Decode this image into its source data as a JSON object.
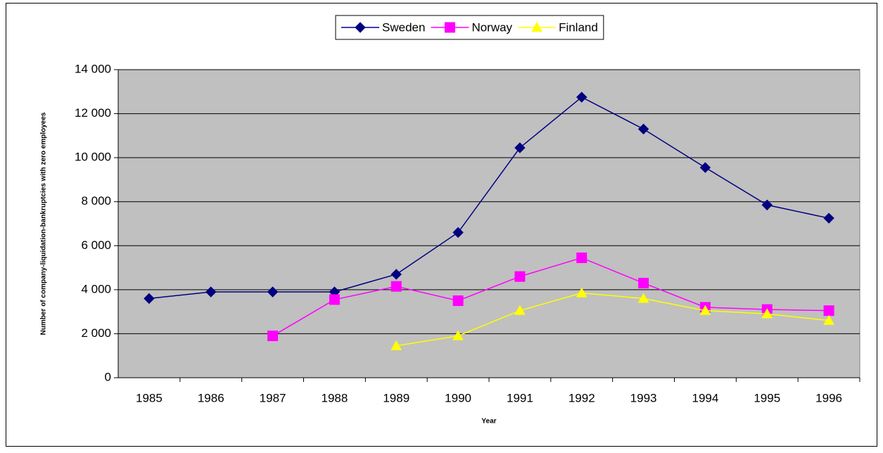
{
  "chart_data": {
    "type": "line",
    "x_label": "Year",
    "y_label": "Number of company-liquidation-bankruptcies with zero employees",
    "categories": [
      "1985",
      "1986",
      "1987",
      "1988",
      "1989",
      "1990",
      "1991",
      "1992",
      "1993",
      "1994",
      "1995",
      "1996"
    ],
    "series": [
      {
        "name": "Sweden",
        "color": "#000080",
        "marker": "diamond",
        "values": [
          3600,
          3900,
          3900,
          3900,
          4700,
          6600,
          10450,
          12750,
          11300,
          9550,
          7850,
          7250
        ]
      },
      {
        "name": "Norway",
        "color": "#ff00ff",
        "marker": "square",
        "values": [
          null,
          null,
          1900,
          3550,
          4150,
          3500,
          4600,
          5450,
          4300,
          3200,
          3100,
          3050
        ]
      },
      {
        "name": "Finland",
        "color": "#ffff00",
        "marker": "triangle",
        "values": [
          null,
          null,
          null,
          null,
          1450,
          1900,
          3050,
          3850,
          3600,
          3050,
          2900,
          2600
        ]
      }
    ],
    "ylim": [
      0,
      14000
    ],
    "yticks": [
      0,
      {
        "value": 2000,
        "label": "2 000"
      },
      {
        "value": 4000,
        "label": "4 000"
      },
      {
        "value": 6000,
        "label": "6 000"
      },
      {
        "value": 8000,
        "label": "8 000"
      },
      {
        "value": 10000,
        "label": "10 000"
      },
      {
        "value": 12000,
        "label": "12 000"
      },
      {
        "value": 14000,
        "label": "14 000"
      }
    ],
    "grid": true,
    "legend": "top",
    "plot_background": "#c0c0c0"
  }
}
